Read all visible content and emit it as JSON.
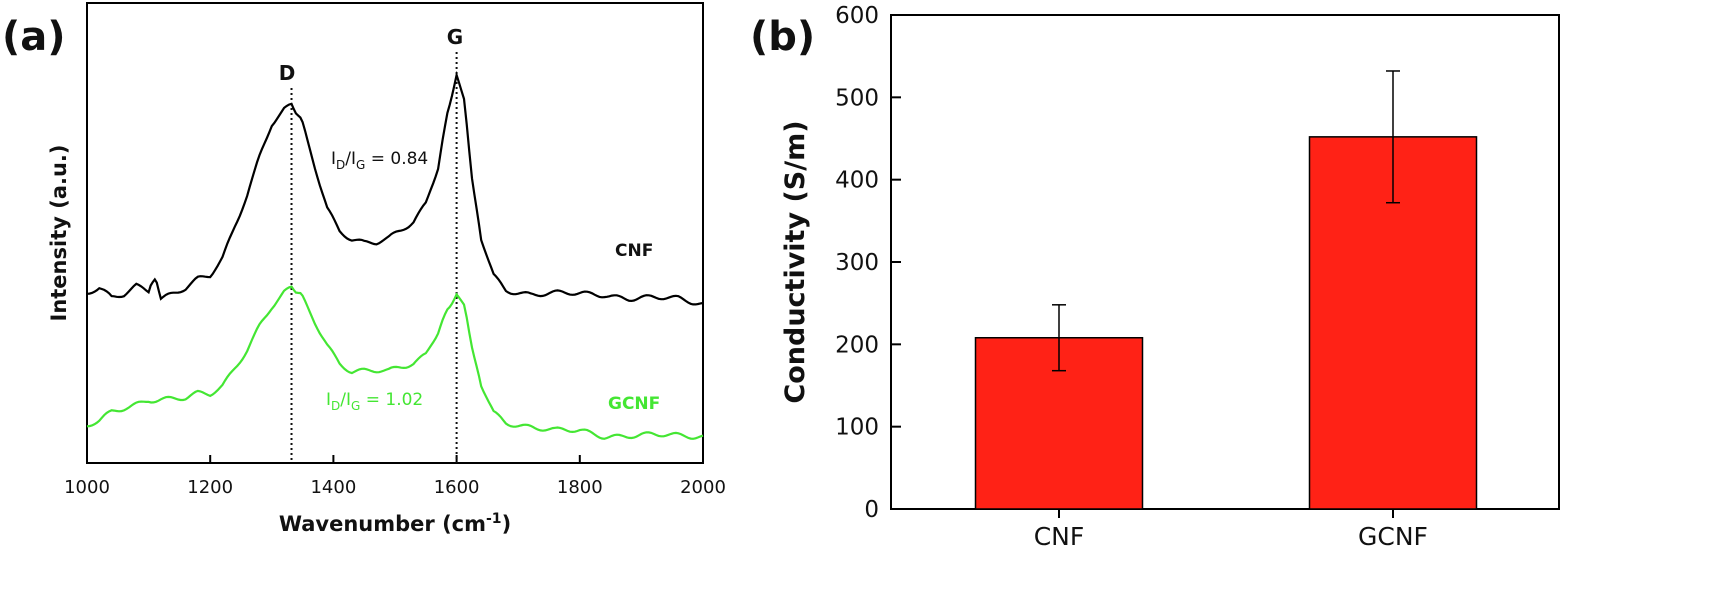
{
  "chart_data": [
    {
      "type": "line",
      "panel_label": "(a)",
      "xlabel": "Wavenumber (cm⁻¹)",
      "ylabel": "Intensity (a.u.)",
      "xlim": [
        1000,
        2000
      ],
      "x_ticks": [
        "1000",
        "1200",
        "1400",
        "1600",
        "1800",
        "2000"
      ],
      "y_ticks_shown": false,
      "peak_lines": [
        {
          "label": "D",
          "x": 1332
        },
        {
          "label": "G",
          "x": 1600
        }
      ],
      "series": [
        {
          "name": "CNF",
          "color": "#000000",
          "ratio_text": "I_D/I_G = 0.84",
          "points": [
            [
              1000,
              0.3
            ],
            [
              1020,
              0.31
            ],
            [
              1040,
              0.29
            ],
            [
              1060,
              0.3
            ],
            [
              1080,
              0.32
            ],
            [
              1100,
              0.31
            ],
            [
              1110,
              0.33
            ],
            [
              1120,
              0.29
            ],
            [
              1140,
              0.3
            ],
            [
              1160,
              0.31
            ],
            [
              1180,
              0.33
            ],
            [
              1200,
              0.34
            ],
            [
              1220,
              0.38
            ],
            [
              1240,
              0.45
            ],
            [
              1260,
              0.52
            ],
            [
              1280,
              0.6
            ],
            [
              1300,
              0.67
            ],
            [
              1320,
              0.7
            ],
            [
              1332,
              0.71
            ],
            [
              1350,
              0.67
            ],
            [
              1370,
              0.58
            ],
            [
              1390,
              0.49
            ],
            [
              1410,
              0.44
            ],
            [
              1430,
              0.42
            ],
            [
              1450,
              0.41
            ],
            [
              1470,
              0.41
            ],
            [
              1490,
              0.42
            ],
            [
              1510,
              0.44
            ],
            [
              1530,
              0.46
            ],
            [
              1550,
              0.5
            ],
            [
              1570,
              0.58
            ],
            [
              1585,
              0.7
            ],
            [
              1600,
              0.78
            ],
            [
              1612,
              0.72
            ],
            [
              1625,
              0.56
            ],
            [
              1640,
              0.42
            ],
            [
              1660,
              0.34
            ],
            [
              1680,
              0.31
            ],
            [
              1720,
              0.3
            ],
            [
              1760,
              0.3
            ],
            [
              1800,
              0.3
            ],
            [
              1840,
              0.3
            ],
            [
              1880,
              0.29
            ],
            [
              1920,
              0.29
            ],
            [
              1960,
              0.29
            ],
            [
              2000,
              0.28
            ]
          ]
        },
        {
          "name": "GCNF",
          "color": "#44e633",
          "ratio_text": "I_D/I_G = 1.02",
          "points": [
            [
              1000,
              0.01
            ],
            [
              1020,
              0.02
            ],
            [
              1040,
              0.04
            ],
            [
              1060,
              0.05
            ],
            [
              1080,
              0.06
            ],
            [
              1100,
              0.07
            ],
            [
              1120,
              0.07
            ],
            [
              1140,
              0.07
            ],
            [
              1160,
              0.07
            ],
            [
              1180,
              0.08
            ],
            [
              1200,
              0.08
            ],
            [
              1220,
              0.1
            ],
            [
              1240,
              0.14
            ],
            [
              1260,
              0.18
            ],
            [
              1280,
              0.23
            ],
            [
              1300,
              0.27
            ],
            [
              1320,
              0.3
            ],
            [
              1332,
              0.31
            ],
            [
              1350,
              0.29
            ],
            [
              1370,
              0.24
            ],
            [
              1390,
              0.19
            ],
            [
              1410,
              0.15
            ],
            [
              1430,
              0.13
            ],
            [
              1450,
              0.13
            ],
            [
              1470,
              0.13
            ],
            [
              1490,
              0.13
            ],
            [
              1510,
              0.14
            ],
            [
              1530,
              0.15
            ],
            [
              1550,
              0.17
            ],
            [
              1570,
              0.22
            ],
            [
              1585,
              0.27
            ],
            [
              1600,
              0.3
            ],
            [
              1612,
              0.27
            ],
            [
              1625,
              0.19
            ],
            [
              1640,
              0.1
            ],
            [
              1660,
              0.04
            ],
            [
              1680,
              0.02
            ],
            [
              1720,
              0.01
            ],
            [
              1760,
              0.0
            ],
            [
              1800,
              0.0
            ],
            [
              1840,
              -0.01
            ],
            [
              1880,
              -0.01
            ],
            [
              1920,
              -0.01
            ],
            [
              1960,
              -0.01
            ],
            [
              2000,
              -0.01
            ]
          ]
        }
      ]
    },
    {
      "type": "bar",
      "panel_label": "(b)",
      "ylabel": "Conductivity (S/m)",
      "ylim": [
        0,
        600
      ],
      "y_ticks": [
        0,
        100,
        200,
        300,
        400,
        500,
        600
      ],
      "categories": [
        "CNF",
        "GCNF"
      ],
      "values": [
        208,
        452
      ],
      "errors": [
        40,
        80
      ],
      "bar_color": "#ff2216"
    }
  ]
}
